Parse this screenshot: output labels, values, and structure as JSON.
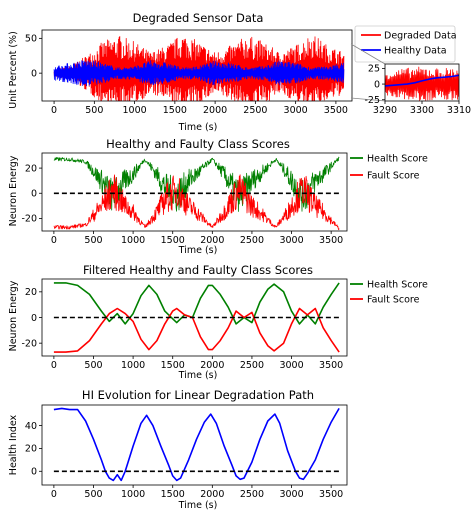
{
  "chart_data": [
    {
      "type": "line",
      "title": "Degraded Sensor Data",
      "xlabel": "Time (s)",
      "ylabel": "Unit Percent (%)",
      "xlim": [
        -150,
        3700
      ],
      "ylim": [
        -40,
        62
      ],
      "xticks": [
        0,
        500,
        1000,
        1500,
        2000,
        2500,
        3000,
        3500
      ],
      "yticks": [
        0,
        50
      ],
      "legend": "top-right",
      "colors": {
        "degraded": "#ff0000",
        "healthy": "#0000ff"
      },
      "series": [
        {
          "name": "Degraded Data",
          "color": "#ff0000",
          "envelope": {
            "x": [
              0,
              200,
              400,
              600,
              800,
              1000,
              1200,
              1400,
              1600,
              1800,
              2000,
              2200,
              2400,
              2600,
              2800,
              3000,
              3200,
              3400,
              3600
            ],
            "amplitude": [
              5,
              10,
              25,
              45,
              55,
              45,
              30,
              40,
              58,
              45,
              30,
              40,
              55,
              45,
              30,
              40,
              58,
              40,
              30
            ]
          }
        },
        {
          "name": "Healthy Data",
          "color": "#0000ff",
          "envelope": {
            "x": [
              0,
              200,
              400,
              600,
              800,
              1000,
              1200,
              1400,
              1600,
              1800,
              2000,
              2200,
              2400,
              2600,
              2800,
              3000,
              3200,
              3400,
              3600
            ],
            "amplitude": [
              10,
              15,
              20,
              15,
              8,
              10,
              18,
              15,
              8,
              10,
              18,
              15,
              8,
              10,
              18,
              15,
              8,
              10,
              15
            ]
          }
        }
      ]
    },
    {
      "type": "line",
      "title": "",
      "xlabel": "",
      "ylabel": "",
      "xlim": [
        3290,
        3310
      ],
      "ylim": [
        -27,
        32
      ],
      "xticks": [
        3290,
        3300,
        3310
      ],
      "yticks": [
        -25,
        0,
        25
      ],
      "series": [
        {
          "name": "Degraded Data",
          "color": "#ff0000",
          "envelope": {
            "x": [
              3290,
              3295,
              3300,
              3305,
              3310
            ],
            "amplitude": [
              20,
              25,
              28,
              25,
              28
            ]
          }
        },
        {
          "name": "Healthy Data",
          "color": "#0000ff",
          "x": [
            3290,
            3292,
            3294,
            3296,
            3298,
            3300,
            3302,
            3304,
            3306,
            3308,
            3310
          ],
          "y": [
            -3,
            -2,
            -1,
            0,
            2,
            5,
            8,
            10,
            11,
            12,
            14
          ]
        }
      ]
    },
    {
      "type": "line",
      "title": "Healthy and Faulty Class Scores",
      "xlabel": "Time (s)",
      "ylabel": "Neuron Energy",
      "xlim": [
        -150,
        3700
      ],
      "ylim": [
        -30,
        32
      ],
      "xticks": [
        0,
        500,
        1000,
        1500,
        2000,
        2500,
        3000,
        3500
      ],
      "yticks": [
        -20,
        0,
        20
      ],
      "legend": "right-outside",
      "series": [
        {
          "name": "Health Score",
          "color": "#008000",
          "x": [
            0,
            200,
            400,
            600,
            750,
            900,
            1000,
            1150,
            1300,
            1400,
            1550,
            1700,
            1800,
            2000,
            2150,
            2250,
            2350,
            2500,
            2600,
            2800,
            2950,
            3050,
            3150,
            3300,
            3400,
            3600
          ],
          "y": [
            27,
            27,
            25,
            10,
            -3,
            10,
            15,
            27,
            15,
            5,
            -3,
            10,
            15,
            27,
            15,
            5,
            -3,
            10,
            15,
            27,
            15,
            5,
            -3,
            10,
            15,
            28
          ]
        },
        {
          "name": "Fault Score",
          "color": "#ff0000",
          "x": [
            0,
            200,
            400,
            600,
            750,
            900,
            1000,
            1150,
            1300,
            1400,
            1550,
            1700,
            1800,
            2000,
            2150,
            2250,
            2350,
            2500,
            2600,
            2800,
            2950,
            3050,
            3150,
            3300,
            3400,
            3600
          ],
          "y": [
            -27,
            -27,
            -25,
            -10,
            3,
            -10,
            -15,
            -27,
            -15,
            -5,
            3,
            -10,
            -15,
            -27,
            -15,
            -5,
            3,
            -10,
            -15,
            -27,
            -15,
            -5,
            3,
            -10,
            -15,
            -28
          ]
        },
        {
          "name": "",
          "color": "#000000",
          "dashed": true,
          "x": [
            0,
            3600
          ],
          "y": [
            0,
            0
          ]
        }
      ]
    },
    {
      "type": "line",
      "title": "Filtered Healthy and Faulty Class Scores",
      "xlabel": "Time (s)",
      "ylabel": "Neuron Energy",
      "xlim": [
        -150,
        3700
      ],
      "ylim": [
        -30,
        30
      ],
      "xticks": [
        0,
        500,
        1000,
        1500,
        2000,
        2500,
        3000,
        3500
      ],
      "yticks": [
        -20,
        0,
        20
      ],
      "legend": "right-outside",
      "series": [
        {
          "name": "Health Score",
          "color": "#008000",
          "x": [
            0,
            150,
            300,
            450,
            600,
            700,
            800,
            900,
            1000,
            1100,
            1200,
            1300,
            1400,
            1500,
            1550,
            1650,
            1750,
            1850,
            1950,
            2000,
            2100,
            2200,
            2300,
            2400,
            2500,
            2600,
            2700,
            2780,
            2900,
            3000,
            3100,
            3200,
            3300,
            3400,
            3500,
            3600
          ],
          "y": [
            27,
            27,
            25,
            18,
            5,
            -3,
            3,
            -5,
            3,
            17,
            25,
            18,
            5,
            -1,
            -4,
            2,
            0,
            15,
            25,
            25,
            18,
            8,
            -5,
            0,
            -4,
            12,
            22,
            26,
            20,
            5,
            -5,
            2,
            -5,
            8,
            18,
            27
          ]
        },
        {
          "name": "Fault Score",
          "color": "#ff0000",
          "x": [
            0,
            150,
            300,
            450,
            600,
            700,
            800,
            900,
            1000,
            1100,
            1200,
            1300,
            1400,
            1500,
            1550,
            1650,
            1750,
            1850,
            1950,
            2000,
            2100,
            2200,
            2300,
            2400,
            2500,
            2600,
            2700,
            2780,
            2900,
            3000,
            3100,
            3200,
            3300,
            3400,
            3500,
            3600
          ],
          "y": [
            -27,
            -27,
            -26,
            -18,
            -5,
            3,
            7,
            3,
            -3,
            -17,
            -25,
            -18,
            -5,
            5,
            7,
            2,
            0,
            -15,
            -25,
            -25,
            -18,
            -8,
            5,
            0,
            4,
            -12,
            -22,
            -26,
            -20,
            -5,
            7,
            2,
            7,
            -8,
            -18,
            -27
          ]
        },
        {
          "name": "",
          "color": "#000000",
          "dashed": true,
          "x": [
            0,
            3600
          ],
          "y": [
            0,
            0
          ]
        }
      ]
    },
    {
      "type": "line",
      "title": "HI Evolution for Linear Degradation Path",
      "xlabel": "Time (s)",
      "ylabel": "Health Index",
      "xlim": [
        -150,
        3700
      ],
      "ylim": [
        -12,
        58
      ],
      "xticks": [
        0,
        500,
        1000,
        1500,
        2000,
        2500,
        3000,
        3500
      ],
      "yticks": [
        0,
        20,
        40
      ],
      "series": [
        {
          "name": "",
          "color": "#0000ff",
          "x": [
            0,
            100,
            200,
            300,
            400,
            500,
            600,
            650,
            700,
            750,
            800,
            850,
            900,
            1000,
            1100,
            1170,
            1250,
            1350,
            1450,
            1500,
            1550,
            1600,
            1700,
            1800,
            1900,
            1980,
            2050,
            2150,
            2250,
            2300,
            2350,
            2400,
            2500,
            2600,
            2700,
            2790,
            2850,
            2950,
            3050,
            3100,
            3150,
            3200,
            3300,
            3400,
            3500,
            3600
          ],
          "y": [
            54,
            55,
            54,
            54,
            44,
            28,
            10,
            0,
            -6,
            -8,
            -3,
            -8,
            0,
            22,
            42,
            49,
            40,
            22,
            5,
            -4,
            -8,
            -6,
            10,
            28,
            43,
            50,
            42,
            22,
            5,
            -4,
            -7,
            -6,
            8,
            28,
            44,
            50,
            42,
            18,
            0,
            -6,
            -7,
            -2,
            10,
            28,
            43,
            55
          ]
        },
        {
          "name": "",
          "color": "#000000",
          "dashed": true,
          "x": [
            0,
            3600
          ],
          "y": [
            0,
            0
          ]
        }
      ]
    }
  ]
}
